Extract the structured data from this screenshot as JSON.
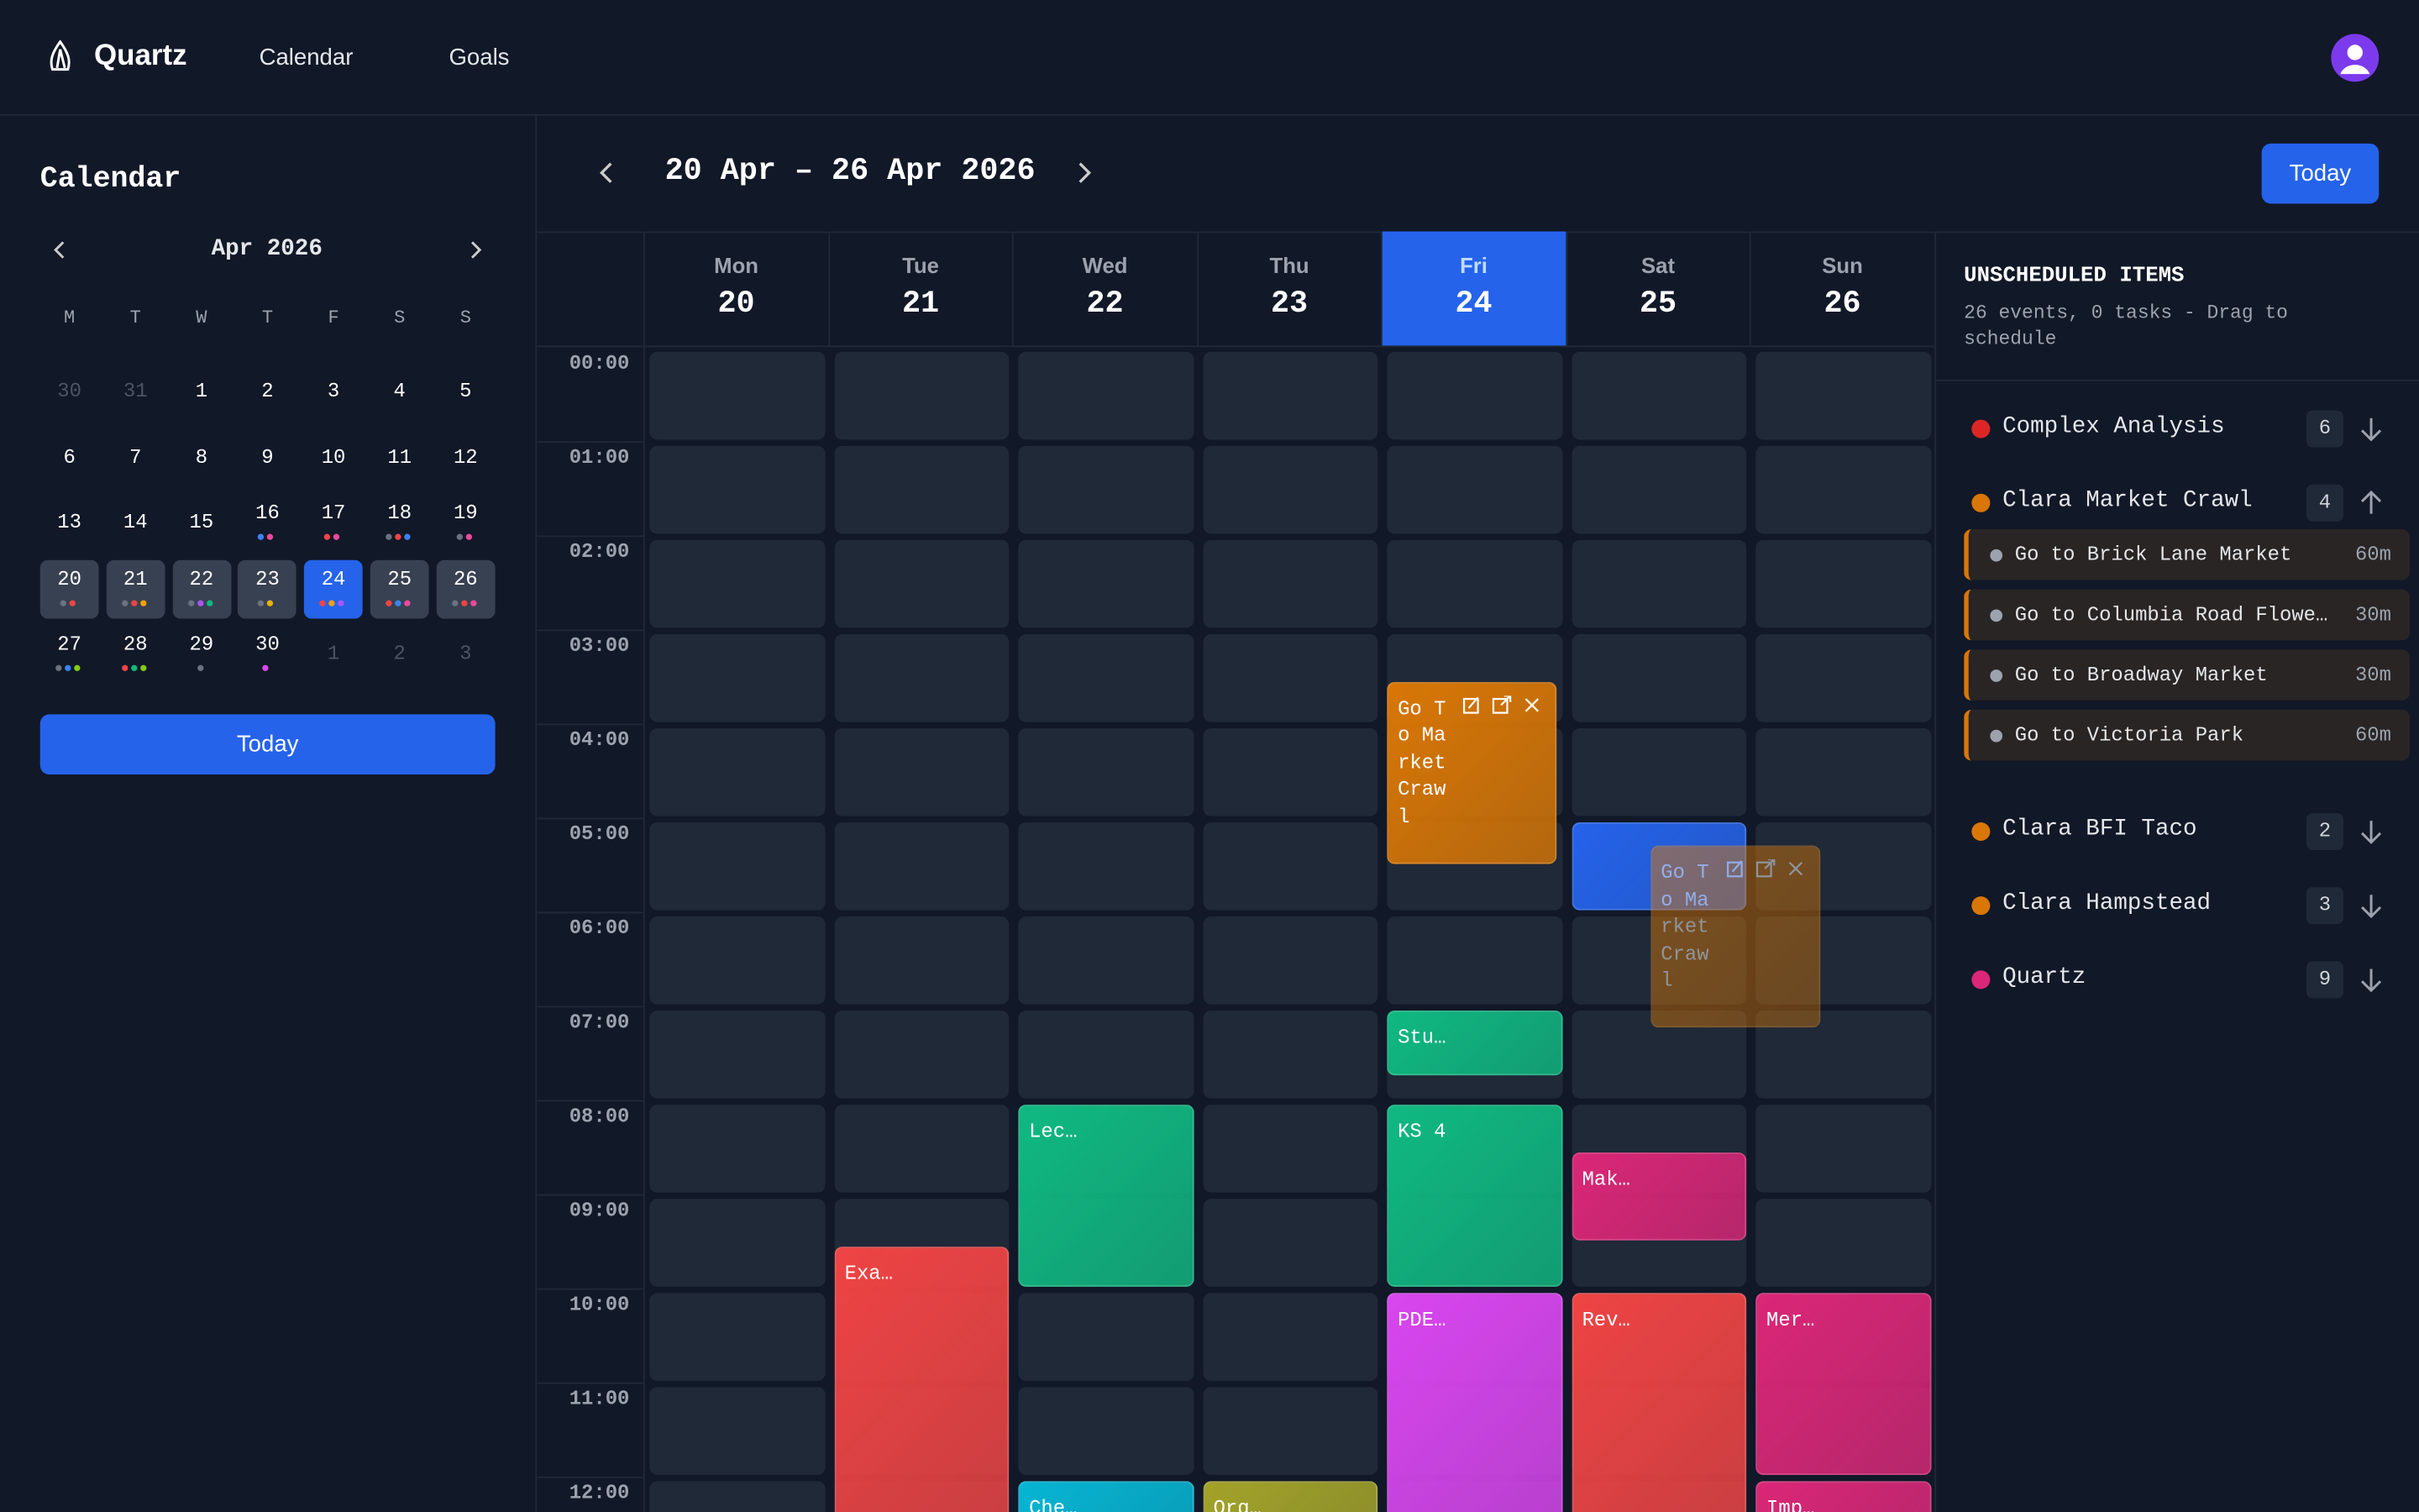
{
  "nav": {
    "brand": "Quartz",
    "links": [
      "Calendar",
      "Goals"
    ]
  },
  "sidebar": {
    "title": "Calendar",
    "month": "Apr 2026",
    "weekdays": [
      "M",
      "T",
      "W",
      "T",
      "F",
      "S",
      "S"
    ],
    "weeks": [
      [
        {
          "day": 30,
          "muted": true
        },
        {
          "day": 31,
          "muted": true
        },
        {
          "day": 1
        },
        {
          "day": 2
        },
        {
          "day": 3
        },
        {
          "day": 4
        },
        {
          "day": 5
        }
      ],
      [
        {
          "day": 6
        },
        {
          "day": 7
        },
        {
          "day": 8
        },
        {
          "day": 9
        },
        {
          "day": 10
        },
        {
          "day": 11
        },
        {
          "day": 12
        }
      ],
      [
        {
          "day": 13
        },
        {
          "day": 14
        },
        {
          "day": 15
        },
        {
          "day": 16,
          "dots": [
            "#3b82f6",
            "#ec4899"
          ]
        },
        {
          "day": 17,
          "dots": [
            "#ef4444",
            "#ec4899"
          ]
        },
        {
          "day": 18,
          "dots": [
            "#6b7280",
            "#ef4444",
            "#3b82f6"
          ]
        },
        {
          "day": 19,
          "dots": [
            "#6b7280",
            "#ec4899"
          ]
        }
      ],
      [
        {
          "day": 20,
          "week": true,
          "dots": [
            "#6b7280",
            "#ef4444"
          ]
        },
        {
          "day": 21,
          "week": true,
          "dots": [
            "#6b7280",
            "#ef4444",
            "#f59e0b"
          ]
        },
        {
          "day": 22,
          "week": true,
          "dots": [
            "#6b7280",
            "#a855f7",
            "#10b981"
          ]
        },
        {
          "day": 23,
          "week": true,
          "dots": [
            "#6b7280",
            "#eab308"
          ]
        },
        {
          "day": 24,
          "selected": true,
          "dots": [
            "#ef4444",
            "#f59e0b",
            "#a855f7"
          ]
        },
        {
          "day": 25,
          "week": true,
          "dots": [
            "#ef4444",
            "#3b82f6",
            "#ec4899"
          ]
        },
        {
          "day": 26,
          "week": true,
          "dots": [
            "#6b7280",
            "#ef4444",
            "#ec4899"
          ]
        }
      ],
      [
        {
          "day": 27,
          "dots": [
            "#6b7280",
            "#3b82f6",
            "#84cc16"
          ]
        },
        {
          "day": 28,
          "dots": [
            "#ef4444",
            "#10b981",
            "#84cc16"
          ]
        },
        {
          "day": 29,
          "dots": [
            "#6b7280"
          ]
        },
        {
          "day": 30,
          "dots": [
            "#d946ef"
          ]
        },
        {
          "day": 1,
          "muted": true
        },
        {
          "day": 2,
          "muted": true
        },
        {
          "day": 3,
          "muted": true
        }
      ]
    ],
    "today": "Today"
  },
  "header": {
    "range": "20 Apr – 26 Apr 2026",
    "today": "Today"
  },
  "days": [
    {
      "name": "Mon",
      "num": 20
    },
    {
      "name": "Tue",
      "num": 21
    },
    {
      "name": "Wed",
      "num": 22
    },
    {
      "name": "Thu",
      "num": 23
    },
    {
      "name": "Fri",
      "num": 24,
      "selected": true
    },
    {
      "name": "Sat",
      "num": 25
    },
    {
      "name": "Sun",
      "num": 26
    }
  ],
  "hours": [
    "00:00",
    "01:00",
    "02:00",
    "03:00",
    "04:00",
    "05:00",
    "06:00",
    "07:00",
    "08:00",
    "09:00",
    "10:00",
    "11:00",
    "12:00"
  ],
  "events": [
    {
      "label": "Go To Market Crawl",
      "day": 4,
      "start": 3.5,
      "end": 5.5,
      "color": "#d97706",
      "tools": true
    },
    {
      "day": 5,
      "start": 5,
      "end": 6,
      "color": "#2563eb"
    },
    {
      "label": "Go To Market Crawl",
      "day": 5,
      "start": 5.25,
      "end": 7.25,
      "color": "#d97706",
      "tools": true,
      "ghost": true
    },
    {
      "label": "Stu…",
      "day": 4,
      "start": 7,
      "end": 7.75,
      "color": "#10b981"
    },
    {
      "label": "Lec…",
      "day": 2,
      "start": 8,
      "end": 10,
      "color": "#10b981"
    },
    {
      "label": "KS 4",
      "day": 4,
      "start": 8,
      "end": 10,
      "color": "#10b981"
    },
    {
      "label": "Mak…",
      "day": 5,
      "start": 8.5,
      "end": 9.5,
      "color": "#db2777"
    },
    {
      "label": "Exa…",
      "day": 1,
      "start": 9.5,
      "end": 13,
      "color": "#ef4444"
    },
    {
      "label": "PDE…",
      "day": 4,
      "start": 10,
      "end": 13,
      "color": "#d946ef"
    },
    {
      "label": "Rev…",
      "day": 5,
      "start": 10,
      "end": 13,
      "color": "#ef4444"
    },
    {
      "label": "Mer…",
      "day": 6,
      "start": 10,
      "end": 12,
      "color": "#db2777"
    },
    {
      "label": "Che…",
      "day": 2,
      "start": 12,
      "end": 13,
      "color": "#06b6d4"
    },
    {
      "label": "Org…",
      "day": 3,
      "start": 12,
      "end": 13,
      "color": "#a3a329"
    },
    {
      "label": "Imp…",
      "day": 6,
      "start": 12,
      "end": 13,
      "color": "#db2777"
    }
  ],
  "unscheduled": {
    "title": "UNSCHEDULED ITEMS",
    "subtitle": "26 events, 0 tasks - Drag to schedule",
    "groups": [
      {
        "name": "Complex Analysis",
        "color": "#dc2626",
        "count": 6
      },
      {
        "name": "Clara Market Crawl",
        "color": "#d97706",
        "count": 4,
        "expanded": true,
        "items": [
          {
            "name": "Go to Brick Lane Market",
            "duration": "60m"
          },
          {
            "name": "Go to Columbia Road Flowe…",
            "duration": "30m"
          },
          {
            "name": "Go to Broadway Market",
            "duration": "30m"
          },
          {
            "name": "Go to Victoria Park",
            "duration": "60m"
          }
        ]
      },
      {
        "name": "Clara BFI Taco",
        "color": "#d97706",
        "count": 2
      },
      {
        "name": "Clara Hampstead",
        "color": "#d97706",
        "count": 3
      },
      {
        "name": "Quartz",
        "color": "#db2777",
        "count": 9
      }
    ]
  }
}
